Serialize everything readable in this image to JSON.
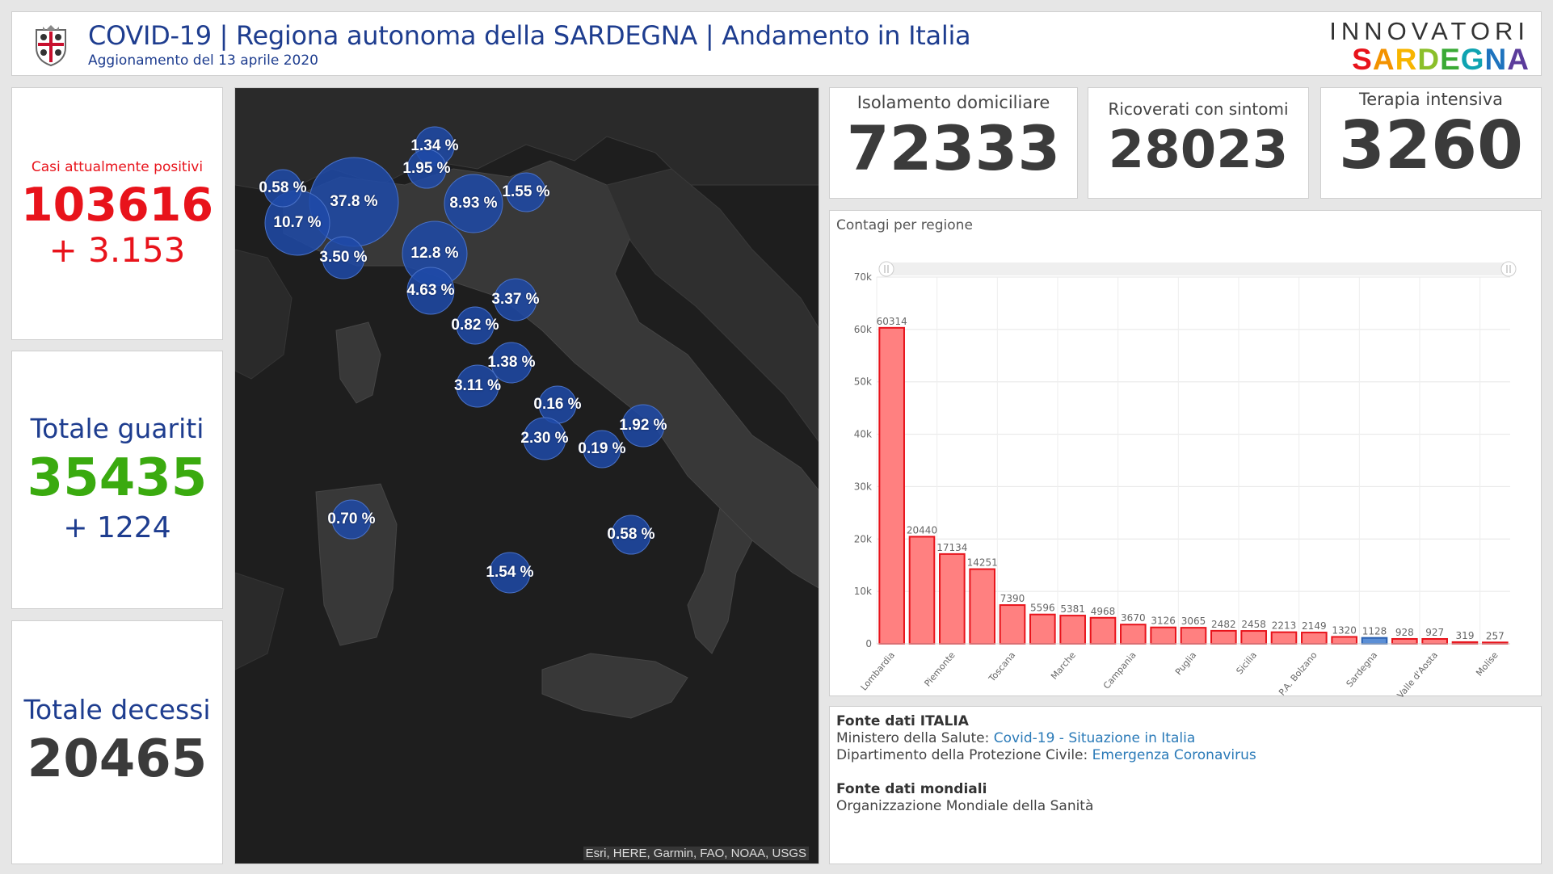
{
  "header": {
    "title": "COVID-19 | Regiona autonoma della SARDEGNA | Andamento in Italia",
    "subtitle": "Aggionamento del 13 aprile 2020",
    "logo_top": "INNOVATORI",
    "logo_bottom": "SARDEGNA"
  },
  "stats": {
    "positive": {
      "label": "Casi attualmente positivi",
      "value": "103616",
      "delta": "+ 3.153",
      "color": "#e8131b"
    },
    "recovered": {
      "label": "Totale guariti",
      "value": "35435",
      "delta": "+ 1224",
      "color": "#3aaa0f",
      "label_color": "#1e3d8f"
    },
    "deaths": {
      "label": "Totale decessi",
      "value": "20465",
      "color": "#3b3b3b",
      "label_color": "#1e3d8f"
    }
  },
  "kpis": {
    "isolamento": {
      "label": "Isolamento domiciliare",
      "value": "72333"
    },
    "ricoverati": {
      "label": "Ricoverati con sintomi",
      "value": "28023"
    },
    "terapia": {
      "label": "Terapia intensiva",
      "value": "3260"
    }
  },
  "map": {
    "attribution": "Esri, HERE, Garmin, FAO, NOAA, USGS",
    "bubble_color": "#1f4aa8",
    "bubbles": [
      {
        "label": "37.8 %"
      },
      {
        "label": "10.7 %"
      },
      {
        "label": "0.58 %"
      },
      {
        "label": "3.50 %"
      },
      {
        "label": "1.34 %"
      },
      {
        "label": "1.95 %"
      },
      {
        "label": "8.93 %"
      },
      {
        "label": "1.55 %"
      },
      {
        "label": "12.8 %"
      },
      {
        "label": "4.63 %"
      },
      {
        "label": "3.37 %"
      },
      {
        "label": "0.82 %"
      },
      {
        "label": "1.38 %"
      },
      {
        "label": "3.11 %"
      },
      {
        "label": "0.16 %"
      },
      {
        "label": "2.30 %"
      },
      {
        "label": "0.19 %"
      },
      {
        "label": "1.92 %"
      },
      {
        "label": "0.70 %"
      },
      {
        "label": "0.58 %"
      },
      {
        "label": "1.54 %"
      }
    ]
  },
  "chart_data": {
    "type": "bar",
    "title": "Contagi per regione",
    "categories": [
      "Lombardia",
      "",
      "Piemonte",
      "",
      "Toscana",
      "",
      "Marche",
      "",
      "Campania",
      "",
      "Puglia",
      "",
      "Sicilia",
      "",
      "P.A. Bolzano",
      "",
      "Sardegna",
      "",
      "Valle d'Aosta",
      "",
      "Molise"
    ],
    "values": [
      60314,
      20440,
      17134,
      14251,
      7390,
      5596,
      5381,
      4968,
      3670,
      3126,
      3065,
      2482,
      2458,
      2213,
      2149,
      1320,
      1128,
      928,
      927,
      319,
      257
    ],
    "highlight_index": 16,
    "bar_color": "#ff8080",
    "bar_border": "#e8131b",
    "highlight_color": "#5b8fd6",
    "ylim": [
      0,
      70000
    ],
    "yticks": [
      "0",
      "10k",
      "20k",
      "30k",
      "40k",
      "50k",
      "60k",
      "70k"
    ],
    "grid": true
  },
  "sources": {
    "italy_title": "Fonte dati ITALIA",
    "line1_prefix": "Ministero della Salute: ",
    "line1_link": "Covid-19 - Situazione in Italia",
    "line2_prefix": "Dipartimento della Protezione Civile: ",
    "line2_link": "Emergenza Coronavirus",
    "world_title": "Fonte dati mondiali",
    "world_text": "Organizzazione Mondiale della Sanità"
  }
}
